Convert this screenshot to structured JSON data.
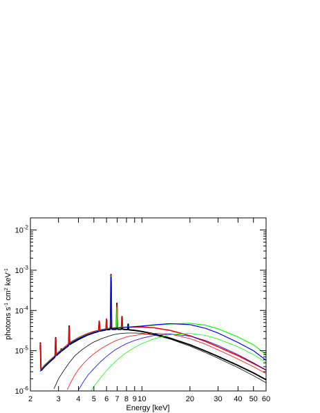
{
  "chart_data": {
    "type": "line",
    "title": "",
    "xlabel": "Energy [keV]",
    "ylabel": "photons s-1 cm2 keV-1",
    "ylabel_parts": {
      "p1": "photons s",
      "e1": "-1",
      "p2": " cm",
      "e2": "2",
      "p3": " keV",
      "e3": "-1"
    },
    "x_scale": "log",
    "y_scale": "log",
    "xlim": [
      2,
      60
    ],
    "ylim": [
      1e-06,
      0.02
    ],
    "grid": false,
    "legend": "none",
    "x_ticks": [
      {
        "value": 2,
        "label": "2"
      },
      {
        "value": 3,
        "label": "3"
      },
      {
        "value": 4,
        "label": "4"
      },
      {
        "value": 5,
        "label": "5"
      },
      {
        "value": 6,
        "label": "6"
      },
      {
        "value": 7,
        "label": "7"
      },
      {
        "value": 8,
        "label": "8"
      },
      {
        "value": 9,
        "label": "9"
      },
      {
        "value": 10,
        "label": "10"
      },
      {
        "value": 20,
        "label": "20"
      },
      {
        "value": 30,
        "label": "30"
      },
      {
        "value": 40,
        "label": "40"
      },
      {
        "value": 50,
        "label": "50"
      },
      {
        "value": 60,
        "label": "60"
      }
    ],
    "y_ticks": [
      {
        "value": 1e-06,
        "base": "10",
        "exp": "-6"
      },
      {
        "value": 1e-05,
        "base": "10",
        "exp": "-5"
      },
      {
        "value": 0.0001,
        "base": "10",
        "exp": "-4"
      },
      {
        "value": 0.001,
        "base": "10",
        "exp": "-3"
      },
      {
        "value": 0.01,
        "base": "10",
        "exp": "-2"
      }
    ],
    "series": [
      {
        "color": "#000000",
        "width": 2.0,
        "x": [
          2.3,
          2.45,
          2.6,
          2.8,
          3.0,
          3.3,
          3.6,
          4.0,
          4.5,
          5.0,
          5.5,
          6.0,
          6.4,
          6.8,
          7.2,
          7.6,
          8.0,
          9.0,
          10.0,
          12.0,
          15.0,
          20.0,
          25.0,
          30.0,
          40.0,
          50.0,
          60.0
        ],
        "y": [
          3e-06,
          4e-06,
          5e-06,
          6.5e-06,
          8.5e-06,
          1.15e-05,
          1.5e-05,
          1.9e-05,
          2.4e-05,
          2.8e-05,
          3.1e-05,
          3.3e-05,
          3.4e-05,
          3.4e-05,
          3.4e-05,
          3.4e-05,
          3.35e-05,
          3.2e-05,
          3e-05,
          2.6e-05,
          2.05e-05,
          1.4e-05,
          9.8e-06,
          7.2e-06,
          4.3e-06,
          2.8e-06,
          1.9e-06
        ],
        "lines": [
          {
            "x": 2.31,
            "y": 1.55e-05
          },
          {
            "x": 2.46,
            "y": 2.8e-06
          },
          {
            "x": 2.62,
            "y": 2.2e-06
          },
          {
            "x": 2.88,
            "y": 2.1e-05
          },
          {
            "x": 3.12,
            "y": 1.1e-05
          },
          {
            "x": 3.5,
            "y": 4.1e-05
          },
          {
            "x": 3.9,
            "y": 1.7e-05
          },
          {
            "x": 5.4,
            "y": 5.3e-05
          },
          {
            "x": 6.0,
            "y": 6e-05
          },
          {
            "x": 6.4,
            "y": 0.00078
          },
          {
            "x": 6.97,
            "y": 0.00015
          },
          {
            "x": 7.5,
            "y": 7e-05
          },
          {
            "x": 8.2,
            "y": 4.6e-05
          }
        ]
      },
      {
        "color": "#ff0000",
        "width": 1.6,
        "x": [
          2.3,
          2.45,
          2.6,
          2.8,
          3.0,
          3.3,
          3.6,
          4.0,
          4.5,
          5.0,
          5.5,
          6.0,
          6.4,
          6.8,
          7.2,
          7.6,
          8.0,
          9.0,
          10.0,
          12.0,
          15.0,
          20.0,
          25.0,
          30.0,
          40.0,
          50.0,
          60.0
        ],
        "y": [
          3.2e-06,
          4.3e-06,
          5.4e-06,
          7e-06,
          9.2e-06,
          1.25e-05,
          1.65e-05,
          2.1e-05,
          2.6e-05,
          3e-05,
          3.3e-05,
          3.5e-05,
          3.65e-05,
          3.7e-05,
          3.75e-05,
          3.8e-05,
          3.85e-05,
          3.9e-05,
          3.9e-05,
          3.7e-05,
          3.2e-05,
          2.35e-05,
          1.7e-05,
          1.25e-05,
          7.5e-06,
          4.8e-06,
          3.3e-06
        ],
        "lines": [
          {
            "x": 2.31,
            "y": 1.5e-05
          },
          {
            "x": 2.88,
            "y": 2e-05
          },
          {
            "x": 3.5,
            "y": 3.9e-05
          },
          {
            "x": 5.4,
            "y": 5.5e-05
          },
          {
            "x": 6.0,
            "y": 6.2e-05
          },
          {
            "x": 6.4,
            "y": 0.00075
          },
          {
            "x": 6.97,
            "y": 0.00014
          },
          {
            "x": 7.5,
            "y": 6.8e-05
          }
        ]
      },
      {
        "color": "#00ff00",
        "width": 1.2,
        "x": [
          2.3,
          2.45,
          2.6,
          2.8,
          3.0,
          3.3,
          3.6,
          4.0,
          4.5,
          5.0,
          5.5,
          6.0,
          6.4,
          6.8,
          7.2,
          7.6,
          8.0,
          9.0,
          10.0,
          12.0,
          15.0,
          20.0,
          25.0,
          30.0,
          40.0,
          50.0,
          60.0
        ],
        "y": [
          3.1e-06,
          4.1e-06,
          5.2e-06,
          6.8e-06,
          9e-06,
          1.2e-05,
          1.6e-05,
          2.05e-05,
          2.5e-05,
          2.9e-05,
          3.2e-05,
          3.45e-05,
          3.6e-05,
          3.7e-05,
          3.75e-05,
          3.8e-05,
          3.85e-05,
          4e-05,
          4.1e-05,
          4.3e-05,
          4.6e-05,
          4.8e-05,
          4.3e-05,
          3.5e-05,
          2.2e-05,
          1.4e-05,
          8e-06
        ],
        "lines": [
          {
            "x": 6.4,
            "y": 0.0007
          },
          {
            "x": 6.97,
            "y": 0.00012
          }
        ]
      },
      {
        "color": "#0000ff",
        "width": 1.2,
        "x": [
          2.3,
          2.45,
          2.6,
          2.8,
          3.0,
          3.3,
          3.6,
          4.0,
          4.5,
          5.0,
          5.5,
          6.0,
          6.4,
          6.8,
          7.2,
          7.6,
          8.0,
          9.0,
          10.0,
          12.0,
          15.0,
          20.0,
          25.0,
          30.0,
          40.0,
          50.0,
          60.0
        ],
        "y": [
          3.05e-06,
          4.05e-06,
          5.1e-06,
          6.7e-06,
          8.8e-06,
          1.18e-05,
          1.58e-05,
          2e-05,
          2.45e-05,
          2.85e-05,
          3.15e-05,
          3.4e-05,
          3.55e-05,
          3.65e-05,
          3.7e-05,
          3.75e-05,
          3.8e-05,
          3.95e-05,
          4.1e-05,
          4.4e-05,
          4.7e-05,
          4.45e-05,
          3.6e-05,
          2.75e-05,
          1.6e-05,
          1e-05,
          5.8e-06
        ],
        "lines": [
          {
            "x": 6.4,
            "y": 0.00068
          }
        ]
      },
      {
        "color": "#000000",
        "width": 0.8,
        "x": [
          2.8,
          3.0,
          3.2,
          3.5,
          3.8,
          4.2,
          4.6,
          5.0,
          5.5,
          6.0,
          6.4,
          6.8,
          7.2,
          7.6,
          8.0,
          9.0,
          10.0,
          12.0,
          15.0,
          20.0,
          25.0,
          30.0,
          40.0,
          50.0,
          60.0
        ],
        "y": [
          1.1e-06,
          2e-06,
          3e-06,
          5e-06,
          7.5e-06,
          1.05e-05,
          1.35e-05,
          1.65e-05,
          1.95e-05,
          2.2e-05,
          2.4e-05,
          2.55e-05,
          2.65e-05,
          2.7e-05,
          2.75e-05,
          2.75e-05,
          2.7e-05,
          2.45e-05,
          1.95e-05,
          1.3e-05,
          9e-06,
          6.5e-06,
          3.8e-06,
          2.4e-06,
          1.6e-06
        ],
        "lines": []
      },
      {
        "color": "#ff0000",
        "width": 0.8,
        "x": [
          3.4,
          3.6,
          3.8,
          4.0,
          4.3,
          4.6,
          5.0,
          5.5,
          6.0,
          6.4,
          6.8,
          7.2,
          7.6,
          8.0,
          9.0,
          10.0,
          12.0,
          15.0,
          20.0,
          25.0,
          30.0,
          40.0,
          50.0,
          60.0
        ],
        "y": [
          1.05e-06,
          1.7e-06,
          2.5e-06,
          3.4e-06,
          4.8e-06,
          6.3e-06,
          8.4e-06,
          1.1e-05,
          1.35e-05,
          1.55e-05,
          1.75e-05,
          1.9e-05,
          2.05e-05,
          2.2e-05,
          2.4e-05,
          2.55e-05,
          2.7e-05,
          2.6e-05,
          2e-05,
          1.45e-05,
          1.05e-05,
          6.2e-06,
          4e-06,
          2.7e-06
        ],
        "lines": []
      },
      {
        "color": "#0000ff",
        "width": 0.8,
        "x": [
          4.0,
          4.3,
          4.6,
          5.0,
          5.5,
          6.0,
          6.4,
          6.8,
          7.2,
          7.6,
          8.0,
          9.0,
          10.0,
          12.0,
          15.0,
          20.0,
          25.0,
          30.0,
          40.0,
          50.0,
          60.0
        ],
        "y": [
          1.05e-06,
          1.7e-06,
          2.5e-06,
          3.6e-06,
          5.3e-06,
          7.2e-06,
          8.8e-06,
          1.05e-05,
          1.2e-05,
          1.35e-05,
          1.5e-05,
          1.8e-05,
          2.05e-05,
          2.4e-05,
          2.6e-05,
          2.3e-05,
          1.8e-05,
          1.35e-05,
          8e-06,
          5e-06,
          3.3e-06
        ],
        "lines": []
      },
      {
        "color": "#00ff00",
        "width": 0.8,
        "x": [
          4.8,
          5.0,
          5.5,
          6.0,
          6.4,
          6.8,
          7.2,
          7.6,
          8.0,
          9.0,
          10.0,
          12.0,
          15.0,
          20.0,
          25.0,
          30.0,
          40.0,
          50.0,
          60.0
        ],
        "y": [
          1e-06,
          1.3e-06,
          2.1e-06,
          3.2e-06,
          4.2e-06,
          5.3e-06,
          6.5e-06,
          7.7e-06,
          9e-06,
          1.2e-05,
          1.5e-05,
          2e-05,
          2.5e-05,
          2.7e-05,
          2.4e-05,
          1.95e-05,
          1.25e-05,
          8e-06,
          5.2e-06
        ],
        "lines": []
      }
    ]
  }
}
